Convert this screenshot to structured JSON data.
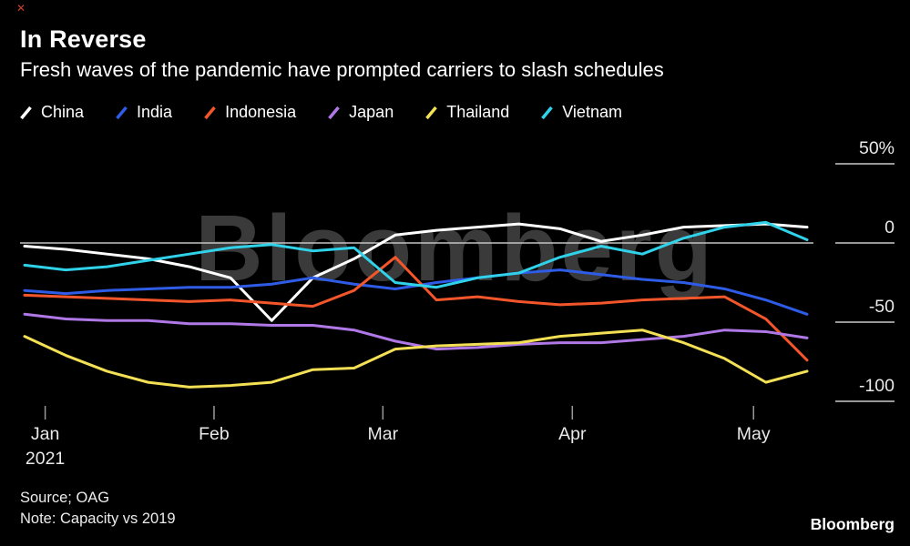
{
  "page": {
    "close_glyph": "✕",
    "title": "In Reverse",
    "subtitle": "Fresh waves of the pandemic have prompted carriers to slash schedules",
    "source_line1": "Source; OAG",
    "source_line2": "Note: Capacity vs 2019",
    "watermark": "Bloomberg",
    "brand_logo": "Bloomberg"
  },
  "chart_data": {
    "type": "line",
    "title": "In Reverse",
    "subtitle": "Fresh waves of the pandemic have prompted carriers to slash schedules",
    "note": "Capacity vs 2019",
    "source": "OAG",
    "unit": "% capacity vs 2019, weekly, Jan–May 2021",
    "legend_position": "top",
    "grid": "zero line full width; short right-side stubs at 50, 0, -50, -100",
    "ylim": [
      -110,
      55
    ],
    "x": [
      0,
      1,
      2,
      3,
      4,
      5,
      6,
      7,
      8,
      9,
      10,
      11,
      12,
      13,
      14,
      15,
      16,
      17,
      18,
      19
    ],
    "x_ticks": [
      {
        "label": "Jan",
        "sub": "2021",
        "pos": 0.5
      },
      {
        "label": "Feb",
        "pos": 4.6
      },
      {
        "label": "Mar",
        "pos": 8.7
      },
      {
        "label": "Apr",
        "pos": 13.3
      },
      {
        "label": "May",
        "pos": 17.7
      }
    ],
    "y_ticks": [
      {
        "label": "50%",
        "value": 50
      },
      {
        "label": "0",
        "value": 0,
        "full_line": true
      },
      {
        "label": "-50",
        "value": -50
      },
      {
        "label": "-100",
        "value": -100
      }
    ],
    "series": [
      {
        "name": "China",
        "color": "#ffffff",
        "values": [
          -2,
          -4,
          -7,
          -10,
          -15,
          -22,
          -49,
          -22,
          -10,
          5,
          8,
          10,
          12,
          9,
          1,
          5,
          10,
          11,
          12,
          10
        ]
      },
      {
        "name": "India",
        "color": "#2e5ce6",
        "values": [
          -30,
          -32,
          -30,
          -29,
          -28,
          -28,
          -26,
          -22,
          -26,
          -29,
          -25,
          -22,
          -19,
          -17,
          -20,
          -23,
          -25,
          -29,
          -36,
          -45
        ]
      },
      {
        "name": "Indonesia",
        "color": "#f4562b",
        "values": [
          -33,
          -34,
          -35,
          -36,
          -37,
          -36,
          -38,
          -40,
          -30,
          -9,
          -36,
          -34,
          -37,
          -39,
          -38,
          -36,
          -35,
          -34,
          -48,
          -74
        ]
      },
      {
        "name": "Japan",
        "color": "#b078e6",
        "values": [
          -45,
          -48,
          -49,
          -49,
          -51,
          -51,
          -52,
          -52,
          -55,
          -62,
          -67,
          -66,
          -64,
          -63,
          -63,
          -61,
          -59,
          -55,
          -56,
          -60
        ]
      },
      {
        "name": "Thailand",
        "color": "#f3e055",
        "values": [
          -59,
          -71,
          -81,
          -88,
          -91,
          -90,
          -88,
          -80,
          -79,
          -67,
          -65,
          -64,
          -63,
          -59,
          -57,
          -55,
          -63,
          -73,
          -88,
          -81
        ]
      },
      {
        "name": "Vietnam",
        "color": "#30d2ea",
        "values": [
          -14,
          -17,
          -15,
          -11,
          -7,
          -3,
          -1,
          -5,
          -3,
          -25,
          -28,
          -22,
          -19,
          -9,
          -2,
          -7,
          3,
          10,
          13,
          2
        ]
      }
    ]
  }
}
